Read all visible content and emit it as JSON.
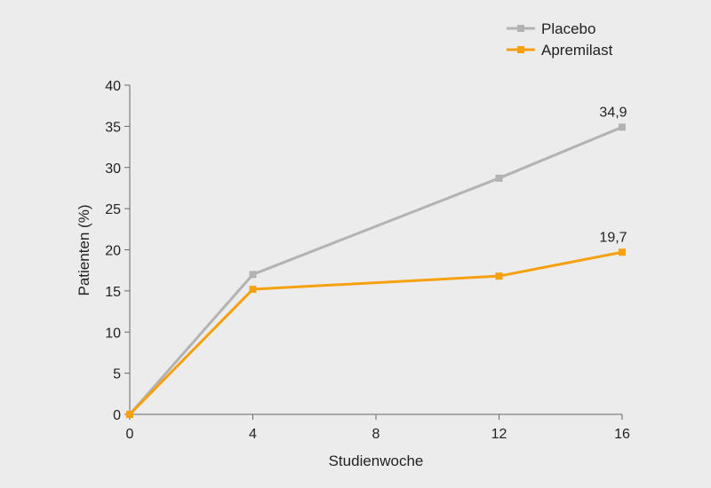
{
  "chart_data": {
    "type": "line",
    "x": [
      0,
      4,
      12,
      16
    ],
    "xlabel": "Studienwoche",
    "ylabel": "Patienten (%)",
    "xticks": [
      "0",
      "4",
      "8",
      "12",
      "16"
    ],
    "yticks": [
      "0",
      "5",
      "10",
      "15",
      "20",
      "25",
      "30",
      "35",
      "40"
    ],
    "xlim": [
      0,
      16
    ],
    "ylim": [
      0,
      40
    ],
    "grid": false,
    "legend_position": "top-right",
    "series": [
      {
        "name": "Placebo",
        "color": "#b3b3b3",
        "values": [
          0,
          17,
          28.7,
          34.9
        ],
        "end_label": "34,9"
      },
      {
        "name": "Apremilast",
        "color": "#f5a00f",
        "values": [
          0,
          15.2,
          16.8,
          19.7
        ],
        "end_label": "19,7"
      }
    ]
  }
}
